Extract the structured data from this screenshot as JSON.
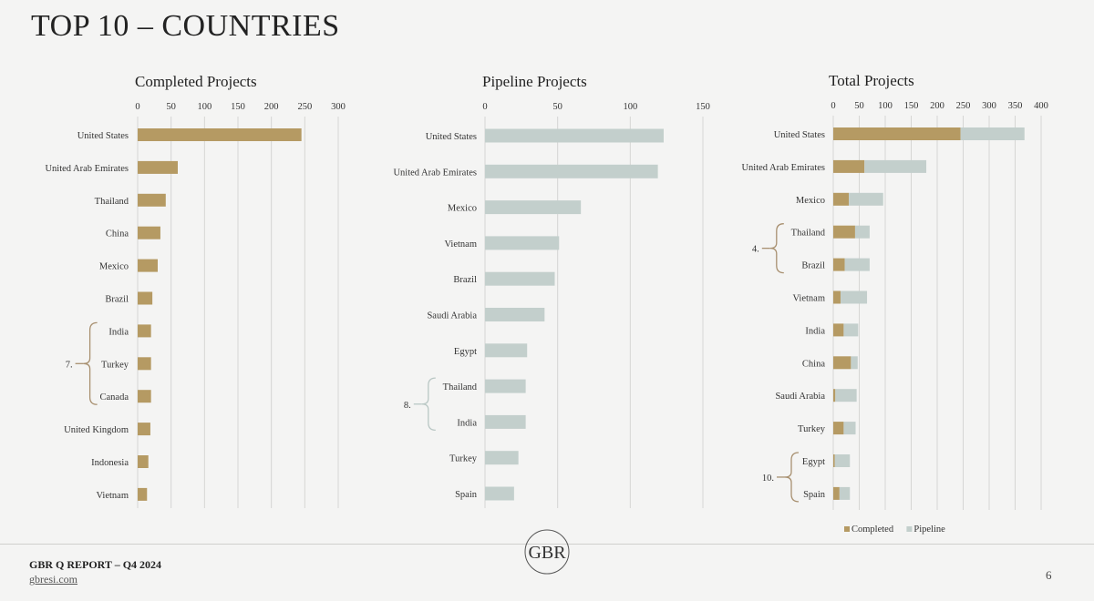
{
  "page": {
    "title": "TOP 10 – COUNTRIES",
    "footer_report": "GBR Q REPORT – Q4 2024",
    "footer_site": "gbresi.com",
    "page_number": "6",
    "logo_text": "GBR"
  },
  "colors": {
    "completed": "#b59a63",
    "pipeline": "#c3cfcc",
    "grid": "#d6d6d4",
    "brace": "#a89070",
    "brace_pipeline": "#b9c7c4"
  },
  "chart_data": [
    {
      "type": "bar",
      "title": "Completed Projects",
      "xlim": [
        0,
        300
      ],
      "ticks": [
        0,
        50,
        100,
        150,
        200,
        250,
        300
      ],
      "categories": [
        "United States",
        "United Arab Emirates",
        "Thailand",
        "China",
        "Mexico",
        "Brazil",
        "India",
        "Turkey",
        "Canada",
        "United Kingdom",
        "Indonesia",
        "Vietnam"
      ],
      "series": [
        {
          "values": [
            245,
            60,
            42,
            34,
            30,
            22,
            20,
            20,
            20,
            19,
            16,
            14
          ]
        }
      ],
      "annotations": [
        {
          "label": "7.",
          "from": "India",
          "to": "Canada"
        }
      ]
    },
    {
      "type": "bar",
      "title": "Pipeline Projects",
      "xlim": [
        0,
        150
      ],
      "ticks": [
        0,
        50,
        100,
        150
      ],
      "categories": [
        "United States",
        "United Arab Emirates",
        "Mexico",
        "Vietnam",
        "Brazil",
        "Saudi Arabia",
        "Egypt",
        "Thailand",
        "India",
        "Turkey",
        "Spain"
      ],
      "series": [
        {
          "values": [
            123,
            119,
            66,
            51,
            48,
            41,
            29,
            28,
            28,
            23,
            20
          ]
        }
      ],
      "annotations": [
        {
          "label": "8.",
          "from": "Thailand",
          "to": "India"
        }
      ]
    },
    {
      "type": "bar",
      "stacked": true,
      "title": "Total Projects",
      "xlim": [
        0,
        400
      ],
      "ticks": [
        0,
        50,
        100,
        150,
        200,
        250,
        300,
        350,
        400
      ],
      "categories": [
        "United States",
        "United Arab Emirates",
        "Mexico",
        "Thailand",
        "Brazil",
        "Vietnam",
        "India",
        "China",
        "Saudi Arabia",
        "Turkey",
        "Egypt",
        "Spain"
      ],
      "series": [
        {
          "name": "Completed",
          "values": [
            245,
            60,
            30,
            42,
            22,
            14,
            20,
            34,
            4,
            20,
            3,
            12
          ]
        },
        {
          "name": "Pipeline",
          "values": [
            123,
            119,
            66,
            28,
            48,
            51,
            28,
            13,
            41,
            23,
            29,
            20
          ]
        }
      ],
      "legend_position": "bottom-right",
      "annotations": [
        {
          "label": "4.",
          "from": "Thailand",
          "to": "Brazil"
        },
        {
          "label": "10.",
          "from": "Egypt",
          "to": "Spain"
        }
      ]
    }
  ]
}
